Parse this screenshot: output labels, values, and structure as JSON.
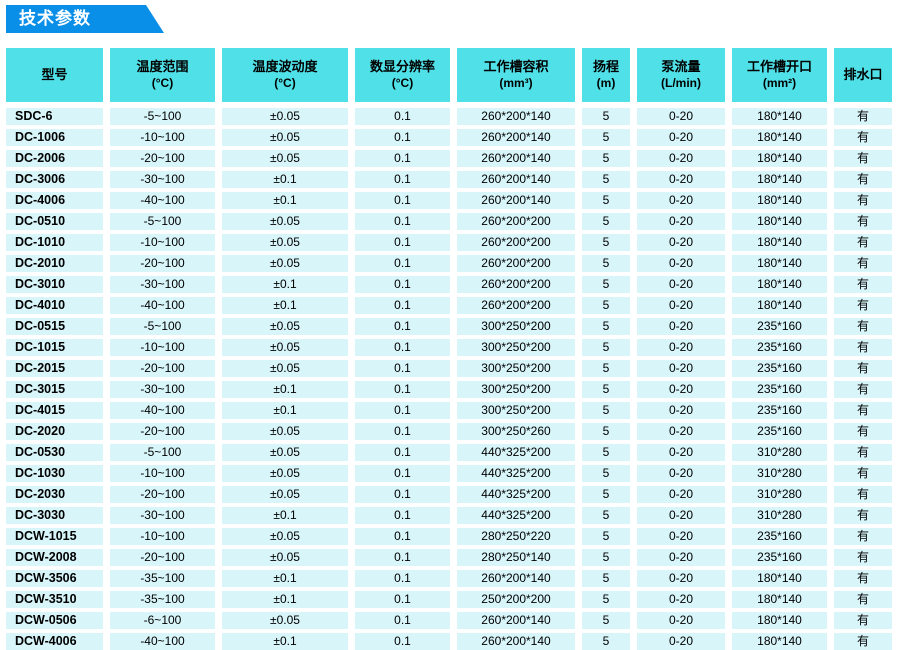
{
  "title": "技术参数",
  "colors": {
    "banner_blue": "#0a8fe9",
    "header_cyan": "#50e1e8",
    "cell_cyan": "#d8f5fa",
    "text": "#000000"
  },
  "table": {
    "columns": [
      {
        "label": "型号",
        "unit": ""
      },
      {
        "label": "温度范围",
        "unit": "(°C)"
      },
      {
        "label": "温度波动度",
        "unit": "(°C)"
      },
      {
        "label": "数显分辨率",
        "unit": "(°C)"
      },
      {
        "label": "工作槽容积",
        "unit": "(mm³)"
      },
      {
        "label": "扬程",
        "unit": "(m)"
      },
      {
        "label": "泵流量",
        "unit": "(L/min)"
      },
      {
        "label": "工作槽开口",
        "unit": "(mm²)"
      },
      {
        "label": "排水口",
        "unit": ""
      }
    ],
    "rows": [
      [
        "SDC-6",
        "-5~100",
        "±0.05",
        "0.1",
        "260*200*140",
        "5",
        "0-20",
        "180*140",
        "有"
      ],
      [
        "DC-1006",
        "-10~100",
        "±0.05",
        "0.1",
        "260*200*140",
        "5",
        "0-20",
        "180*140",
        "有"
      ],
      [
        "DC-2006",
        "-20~100",
        "±0.05",
        "0.1",
        "260*200*140",
        "5",
        "0-20",
        "180*140",
        "有"
      ],
      [
        "DC-3006",
        "-30~100",
        "±0.1",
        "0.1",
        "260*200*140",
        "5",
        "0-20",
        "180*140",
        "有"
      ],
      [
        "DC-4006",
        "-40~100",
        "±0.1",
        "0.1",
        "260*200*140",
        "5",
        "0-20",
        "180*140",
        "有"
      ],
      [
        "DC-0510",
        "-5~100",
        "±0.05",
        "0.1",
        "260*200*200",
        "5",
        "0-20",
        "180*140",
        "有"
      ],
      [
        "DC-1010",
        "-10~100",
        "±0.05",
        "0.1",
        "260*200*200",
        "5",
        "0-20",
        "180*140",
        "有"
      ],
      [
        "DC-2010",
        "-20~100",
        "±0.05",
        "0.1",
        "260*200*200",
        "5",
        "0-20",
        "180*140",
        "有"
      ],
      [
        "DC-3010",
        "-30~100",
        "±0.1",
        "0.1",
        "260*200*200",
        "5",
        "0-20",
        "180*140",
        "有"
      ],
      [
        "DC-4010",
        "-40~100",
        "±0.1",
        "0.1",
        "260*200*200",
        "5",
        "0-20",
        "180*140",
        "有"
      ],
      [
        "DC-0515",
        "-5~100",
        "±0.05",
        "0.1",
        "300*250*200",
        "5",
        "0-20",
        "235*160",
        "有"
      ],
      [
        "DC-1015",
        "-10~100",
        "±0.05",
        "0.1",
        "300*250*200",
        "5",
        "0-20",
        "235*160",
        "有"
      ],
      [
        "DC-2015",
        "-20~100",
        "±0.05",
        "0.1",
        "300*250*200",
        "5",
        "0-20",
        "235*160",
        "有"
      ],
      [
        "DC-3015",
        "-30~100",
        "±0.1",
        "0.1",
        "300*250*200",
        "5",
        "0-20",
        "235*160",
        "有"
      ],
      [
        "DC-4015",
        "-40~100",
        "±0.1",
        "0.1",
        "300*250*200",
        "5",
        "0-20",
        "235*160",
        "有"
      ],
      [
        "DC-2020",
        "-20~100",
        "±0.05",
        "0.1",
        "300*250*260",
        "5",
        "0-20",
        "235*160",
        "有"
      ],
      [
        "DC-0530",
        "-5~100",
        "±0.05",
        "0.1",
        "440*325*200",
        "5",
        "0-20",
        "310*280",
        "有"
      ],
      [
        "DC-1030",
        "-10~100",
        "±0.05",
        "0.1",
        "440*325*200",
        "5",
        "0-20",
        "310*280",
        "有"
      ],
      [
        "DC-2030",
        "-20~100",
        "±0.05",
        "0.1",
        "440*325*200",
        "5",
        "0-20",
        "310*280",
        "有"
      ],
      [
        "DC-3030",
        "-30~100",
        "±0.1",
        "0.1",
        "440*325*200",
        "5",
        "0-20",
        "310*280",
        "有"
      ],
      [
        "DCW-1015",
        "-10~100",
        "±0.05",
        "0.1",
        "280*250*220",
        "5",
        "0-20",
        "235*160",
        "有"
      ],
      [
        "DCW-2008",
        "-20~100",
        "±0.05",
        "0.1",
        "280*250*140",
        "5",
        "0-20",
        "235*160",
        "有"
      ],
      [
        "DCW-3506",
        "-35~100",
        "±0.1",
        "0.1",
        "260*200*140",
        "5",
        "0-20",
        "180*140",
        "有"
      ],
      [
        "DCW-3510",
        "-35~100",
        "±0.1",
        "0.1",
        "250*200*200",
        "5",
        "0-20",
        "180*140",
        "有"
      ],
      [
        "DCW-0506",
        "-6~100",
        "±0.05",
        "0.1",
        "260*200*140",
        "5",
        "0-20",
        "180*140",
        "有"
      ],
      [
        "DCW-4006",
        "-40~100",
        "±0.1",
        "0.1",
        "260*200*140",
        "5",
        "0-20",
        "180*140",
        "有"
      ]
    ]
  }
}
